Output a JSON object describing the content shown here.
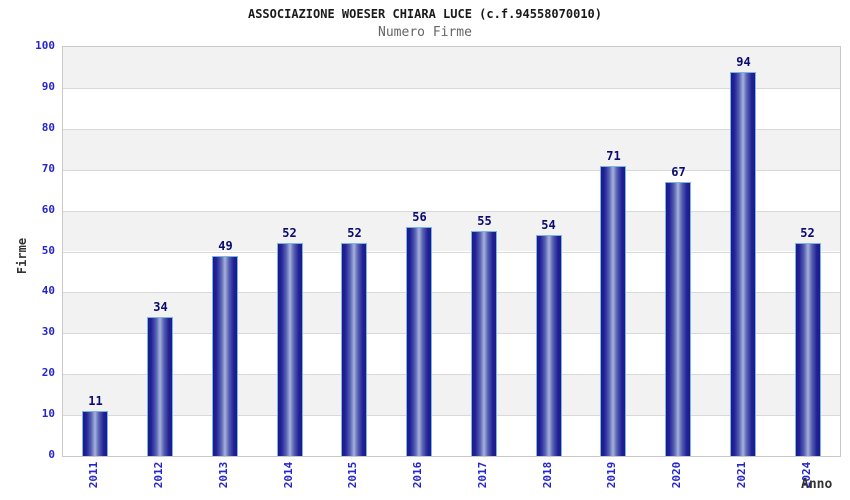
{
  "header": {
    "title": "ASSOCIAZIONE WOESER CHIARA LUCE (c.f.94558070010)",
    "subtitle": "Numero Firme"
  },
  "chart_data": {
    "type": "bar",
    "title": "ASSOCIAZIONE WOESER CHIARA LUCE (c.f.94558070010)",
    "subtitle": "Numero Firme",
    "categories": [
      "2011",
      "2012",
      "2013",
      "2014",
      "2015",
      "2016",
      "2017",
      "2018",
      "2019",
      "2020",
      "2021",
      "2024"
    ],
    "values": [
      11,
      34,
      49,
      52,
      52,
      56,
      55,
      54,
      71,
      67,
      94,
      52
    ],
    "xlabel": "Anno",
    "ylabel": "Firme",
    "ylim": [
      0,
      100
    ],
    "ytick_step": 10,
    "yticks": [
      0,
      10,
      20,
      30,
      40,
      50,
      60,
      70,
      80,
      90,
      100
    ],
    "legend_position": "none",
    "grid": "horizontal-bands-alternating",
    "show_value_labels": true,
    "colors": {
      "bar_edge": "#1a1a88",
      "bar_center": "#a7b0de",
      "bar_border": "#7ab5e4",
      "tick_label": "#2525cd",
      "value_label": "#0a0a70",
      "band_gray": "#f2f2f2",
      "gridline": "#d9d9d9",
      "plot_border": "#c9c9c9",
      "axis_title": "#333333",
      "title": "#1a1a1a",
      "subtitle": "#666666",
      "background": "#ffffff"
    }
  }
}
